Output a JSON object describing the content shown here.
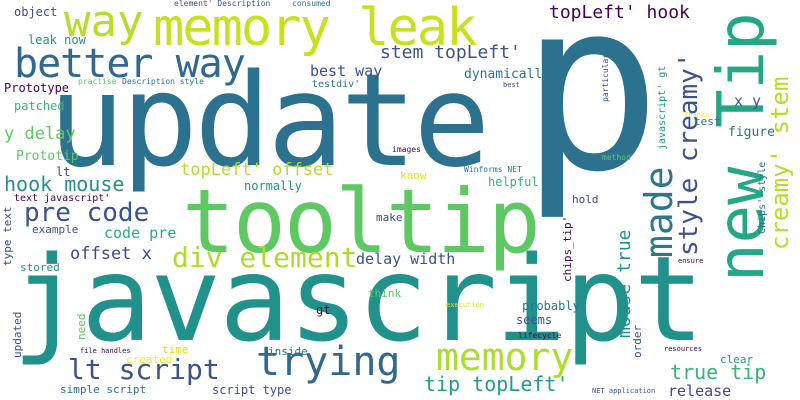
{
  "word_cloud": {
    "palette": {
      "dark_purple": "#440154",
      "indigo": "#3b528b",
      "blue": "#2c728e",
      "teal": "#21918c",
      "green_teal": "#28ae80",
      "green": "#5ec962",
      "lime": "#addc30",
      "yellow": "#fde725"
    },
    "words": [
      {
        "text": "javascript",
        "color": "#21918c"
      },
      {
        "text": "update",
        "color": "#2c728e"
      },
      {
        "text": "p",
        "color": "#2c728e"
      },
      {
        "text": "tooltip",
        "color": "#5ec962"
      },
      {
        "text": "memory leak",
        "color": "#c8e020"
      },
      {
        "text": "way",
        "color": "#b5de2b"
      },
      {
        "text": "better way",
        "color": "#31688e"
      },
      {
        "text": "new Tip",
        "color": "#22a884"
      },
      {
        "text": "memory",
        "color": "#addc30"
      },
      {
        "text": "trying",
        "color": "#31688e"
      },
      {
        "text": "made",
        "color": "#2a788e"
      },
      {
        "text": "lt script",
        "color": "#3b528b"
      },
      {
        "text": "div element",
        "color": "#addc30"
      },
      {
        "text": "pre code",
        "color": "#3b528b"
      },
      {
        "text": "style creamy'",
        "color": "#3b528b"
      },
      {
        "text": "creamy' stem",
        "color": "#b5de2b"
      },
      {
        "text": "topLeft' hook",
        "color": "#440154"
      },
      {
        "text": "stem topLeft'",
        "color": "#3b528b"
      },
      {
        "text": "tip topLeft'",
        "color": "#1fa187"
      },
      {
        "text": "true tip",
        "color": "#35b779"
      },
      {
        "text": "hook mouse",
        "color": "#21918c"
      },
      {
        "text": "topLeft' offset",
        "color": "#b5de2b"
      },
      {
        "text": "mouse true",
        "color": "#21918c"
      },
      {
        "text": "offset x",
        "color": "#3e4989"
      },
      {
        "text": "code pre",
        "color": "#28ae80"
      },
      {
        "text": "best way",
        "color": "#3b528b"
      },
      {
        "text": "delay width",
        "color": "#3b528b"
      },
      {
        "text": "y delay",
        "color": "#5ec962"
      },
      {
        "text": "dynamically",
        "color": "#2c728e"
      },
      {
        "text": "release",
        "color": "#3e4989"
      },
      {
        "text": "x y",
        "color": "#3b528b"
      },
      {
        "text": "Prototip",
        "color": "#5ec962"
      },
      {
        "text": "object",
        "color": "#3e4989"
      },
      {
        "text": "figure",
        "color": "#2c728e"
      },
      {
        "text": "Prototype",
        "color": "#440154"
      },
      {
        "text": "leak now",
        "color": "#21918c"
      },
      {
        "text": "patched",
        "color": "#35b779"
      },
      {
        "text": "probably",
        "color": "#2c728e"
      },
      {
        "text": "seems",
        "color": "#3b528b"
      },
      {
        "text": "normally",
        "color": "#21918c"
      },
      {
        "text": "example",
        "color": "#3b528b"
      },
      {
        "text": "make",
        "color": "#3e4989"
      },
      {
        "text": "hold",
        "color": "#3e4989"
      },
      {
        "text": "helpful",
        "color": "#35b779"
      },
      {
        "text": "know",
        "color": "#dde318"
      },
      {
        "text": "think",
        "color": "#5ec962"
      },
      {
        "text": "clear",
        "color": "#21918c"
      },
      {
        "text": "order",
        "color": "#3b528b"
      },
      {
        "text": "stored",
        "color": "#21918c"
      },
      {
        "text": "inside",
        "color": "#2c728e"
      },
      {
        "text": "gt",
        "color": "#440154"
      },
      {
        "text": "lt",
        "color": "#3e4989"
      },
      {
        "text": "test",
        "color": "#2c728e"
      },
      {
        "text": "need",
        "color": "#5ec962"
      },
      {
        "text": "updated",
        "color": "#3b528b"
      },
      {
        "text": "created",
        "color": "#fde725"
      },
      {
        "text": "time",
        "color": "#dde318"
      },
      {
        "text": "simple script",
        "color": "#2c728e"
      },
      {
        "text": "script type",
        "color": "#3b528b"
      },
      {
        "text": "type text",
        "color": "#3b528b"
      },
      {
        "text": "text javascript'",
        "color": "#440154"
      },
      {
        "text": "chips_tip'",
        "color": "#440154"
      },
      {
        "text": "Chips' style",
        "color": "#2c728e"
      },
      {
        "text": "javascript' gt",
        "color": "#21918c"
      },
      {
        "text": "testdiv'",
        "color": "#2c728e"
      },
      {
        "text": "element' Description",
        "color": "#3b528b"
      },
      {
        "text": "consumed",
        "color": "#2c728e"
      },
      {
        "text": "Description style",
        "color": "#2c728e"
      },
      {
        "text": "practise",
        "color": "#5ec962"
      },
      {
        "text": "best",
        "color": "#3e4989"
      },
      {
        "text": "particular",
        "color": "#3e4989"
      },
      {
        "text": "Thanks",
        "color": "#fde725"
      },
      {
        "text": "images",
        "color": "#440154"
      },
      {
        "text": "method",
        "color": "#5ec962"
      },
      {
        "text": "Winforms NET",
        "color": "#2c728e"
      },
      {
        "text": "ensure",
        "color": "#440154"
      },
      {
        "text": "execution",
        "color": "#dde318"
      },
      {
        "text": "lifecycle",
        "color": "#440154"
      },
      {
        "text": "resources",
        "color": "#440154"
      },
      {
        "text": "file handles",
        "color": "#440154"
      },
      {
        "text": "NET application",
        "color": "#3b528b"
      }
    ]
  }
}
